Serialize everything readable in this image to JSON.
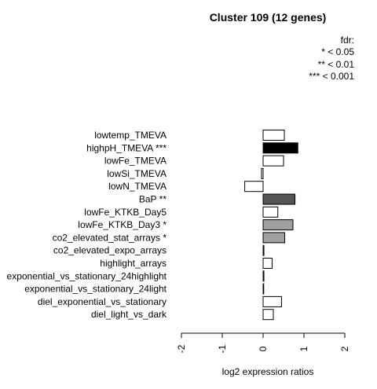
{
  "chart_data": {
    "type": "bar",
    "orientation": "horizontal",
    "title": "Cluster 109 (12 genes)",
    "xlabel": "log2 expression ratios",
    "ylabel": "",
    "xlim": [
      -2,
      2
    ],
    "xticks": [
      -2,
      -1,
      0,
      1,
      2
    ],
    "legend": {
      "position": "top-right",
      "title": "fdr:",
      "entries": [
        "* < 0.05",
        "** < 0.01",
        "*** < 0.001"
      ]
    },
    "categories": [
      "lowtemp_TMEVA",
      "highpH_TMEVA ***",
      "lowFe_TMEVA",
      "lowSi_TMEVA",
      "lowN_TMEVA",
      "BaP **",
      "lowFe_KTKB_Day5",
      "lowFe_KTKB_Day3 *",
      "co2_elevated_stat_arrays *",
      "co2_elevated_expo_arrays",
      "highlight_arrays",
      "exponential_vs_stationary_24highlight",
      "exponential_vs_stationary_24light",
      "diel_exponential_vs_stationary",
      "diel_light_vs_dark"
    ],
    "values": [
      0.52,
      0.85,
      0.5,
      -0.04,
      -0.45,
      0.78,
      0.36,
      0.73,
      0.53,
      0.02,
      0.22,
      0.02,
      0.0,
      0.45,
      0.25
    ],
    "significance": [
      "",
      "***",
      "",
      "",
      "",
      "**",
      "",
      "*",
      "*",
      "",
      "",
      "",
      "",
      "",
      ""
    ],
    "colors": {
      "none": "#ffffff",
      "*": "#a0a0a0",
      "**": "#555555",
      "***": "#000000",
      "stroke": "#000000"
    }
  }
}
